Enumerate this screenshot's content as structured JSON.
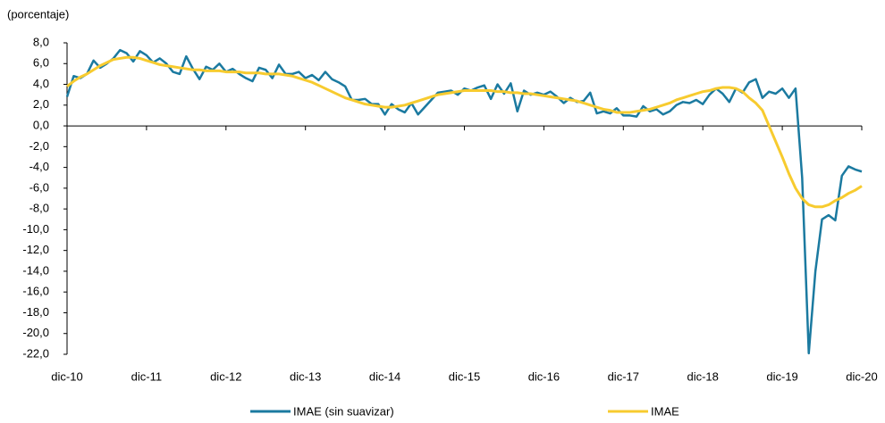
{
  "chart_data": {
    "type": "line",
    "y_axis_label": "(porcentaje)",
    "categories": [
      "dic-10",
      null,
      null,
      null,
      null,
      null,
      null,
      null,
      null,
      null,
      null,
      null,
      "dic-11",
      null,
      null,
      null,
      null,
      null,
      null,
      null,
      null,
      null,
      null,
      null,
      "dic-12",
      null,
      null,
      null,
      null,
      null,
      null,
      null,
      null,
      null,
      null,
      null,
      "dic-13",
      null,
      null,
      null,
      null,
      null,
      null,
      null,
      null,
      null,
      null,
      null,
      "dic-14",
      null,
      null,
      null,
      null,
      null,
      null,
      null,
      null,
      null,
      null,
      null,
      "dic-15",
      null,
      null,
      null,
      null,
      null,
      null,
      null,
      null,
      null,
      null,
      null,
      "dic-16",
      null,
      null,
      null,
      null,
      null,
      null,
      null,
      null,
      null,
      null,
      null,
      "dic-17",
      null,
      null,
      null,
      null,
      null,
      null,
      null,
      null,
      null,
      null,
      null,
      "dic-18",
      null,
      null,
      null,
      null,
      null,
      null,
      null,
      null,
      null,
      null,
      null,
      "dic-19",
      null,
      null,
      null,
      null,
      null,
      null,
      null,
      null,
      null,
      null,
      null,
      "dic-20"
    ],
    "series": [
      {
        "name": "IMAE (sin suavizar)",
        "color": "#1b7aa0",
        "values": [
          2.8,
          4.8,
          4.6,
          5.0,
          6.3,
          5.6,
          6.0,
          6.5,
          7.3,
          7.0,
          6.2,
          7.2,
          6.8,
          6.1,
          6.5,
          6.0,
          5.2,
          5.0,
          6.7,
          5.5,
          4.5,
          5.7,
          5.4,
          6.0,
          5.2,
          5.5,
          5.0,
          4.6,
          4.3,
          5.6,
          5.4,
          4.6,
          5.9,
          5.0,
          5.0,
          5.2,
          4.6,
          4.9,
          4.4,
          5.2,
          4.5,
          4.2,
          3.8,
          2.5,
          2.5,
          2.6,
          2.1,
          2.1,
          1.1,
          2.1,
          1.6,
          1.3,
          2.2,
          1.1,
          1.8,
          2.5,
          3.2,
          3.3,
          3.4,
          3.0,
          3.6,
          3.4,
          3.7,
          3.9,
          2.6,
          4.0,
          3.1,
          4.1,
          1.4,
          3.4,
          3.0,
          3.2,
          3.0,
          3.3,
          2.8,
          2.2,
          2.7,
          2.3,
          2.4,
          3.2,
          1.2,
          1.4,
          1.2,
          1.7,
          1.0,
          1.0,
          0.9,
          1.9,
          1.4,
          1.6,
          1.1,
          1.4,
          2.0,
          2.3,
          2.2,
          2.5,
          2.1,
          3.0,
          3.6,
          3.1,
          2.3,
          3.6,
          3.2,
          4.2,
          4.5,
          2.7,
          3.3,
          3.1,
          3.6,
          2.7,
          3.6,
          -5.0,
          -21.9,
          -14.0,
          -9.0,
          -8.6,
          -9.1,
          -4.8,
          -3.9,
          -4.2,
          -4.4
        ]
      },
      {
        "name": "IMAE",
        "color": "#f7cb2f",
        "values": [
          3.8,
          4.3,
          4.7,
          5.0,
          5.4,
          5.8,
          6.1,
          6.4,
          6.5,
          6.6,
          6.6,
          6.5,
          6.3,
          6.1,
          5.9,
          5.8,
          5.7,
          5.6,
          5.5,
          5.4,
          5.4,
          5.3,
          5.3,
          5.3,
          5.2,
          5.2,
          5.2,
          5.1,
          5.1,
          5.1,
          5.0,
          5.0,
          5.0,
          4.9,
          4.8,
          4.6,
          4.4,
          4.2,
          3.9,
          3.6,
          3.3,
          3.0,
          2.7,
          2.5,
          2.3,
          2.1,
          2.0,
          1.9,
          1.8,
          1.8,
          1.9,
          2.0,
          2.2,
          2.4,
          2.6,
          2.8,
          3.0,
          3.1,
          3.2,
          3.3,
          3.4,
          3.4,
          3.4,
          3.4,
          3.4,
          3.3,
          3.3,
          3.2,
          3.2,
          3.1,
          3.1,
          3.0,
          2.9,
          2.8,
          2.7,
          2.6,
          2.5,
          2.4,
          2.2,
          2.0,
          1.8,
          1.6,
          1.5,
          1.3,
          1.3,
          1.3,
          1.4,
          1.5,
          1.6,
          1.8,
          2.0,
          2.2,
          2.5,
          2.7,
          2.9,
          3.1,
          3.3,
          3.4,
          3.6,
          3.7,
          3.7,
          3.6,
          3.3,
          2.7,
          2.2,
          1.5,
          0.0,
          -1.5,
          -3.0,
          -4.6,
          -6.0,
          -7.0,
          -7.6,
          -7.8,
          -7.8,
          -7.6,
          -7.2,
          -6.9,
          -6.5,
          -6.2,
          -5.8
        ]
      }
    ],
    "ylim": [
      -22,
      8
    ],
    "yticks": [
      {
        "value": 8,
        "label": "8,0"
      },
      {
        "value": 6,
        "label": "6,0"
      },
      {
        "value": 4,
        "label": "4,0"
      },
      {
        "value": 2,
        "label": "2,0"
      },
      {
        "value": 0,
        "label": "0,0"
      },
      {
        "value": -2,
        "label": "-2,0"
      },
      {
        "value": -4,
        "label": "-4,0"
      },
      {
        "value": -6,
        "label": "-6,0"
      },
      {
        "value": -8,
        "label": "-8,0"
      },
      {
        "value": -10,
        "label": "-10,0"
      },
      {
        "value": -12,
        "label": "-12,0"
      },
      {
        "value": -14,
        "label": "-14,0"
      },
      {
        "value": -16,
        "label": "-16,0"
      },
      {
        "value": -18,
        "label": "-18,0"
      },
      {
        "value": -20,
        "label": "-20,0"
      },
      {
        "value": -22,
        "label": "-22,0"
      }
    ],
    "grid": false,
    "legend": "bottom"
  }
}
